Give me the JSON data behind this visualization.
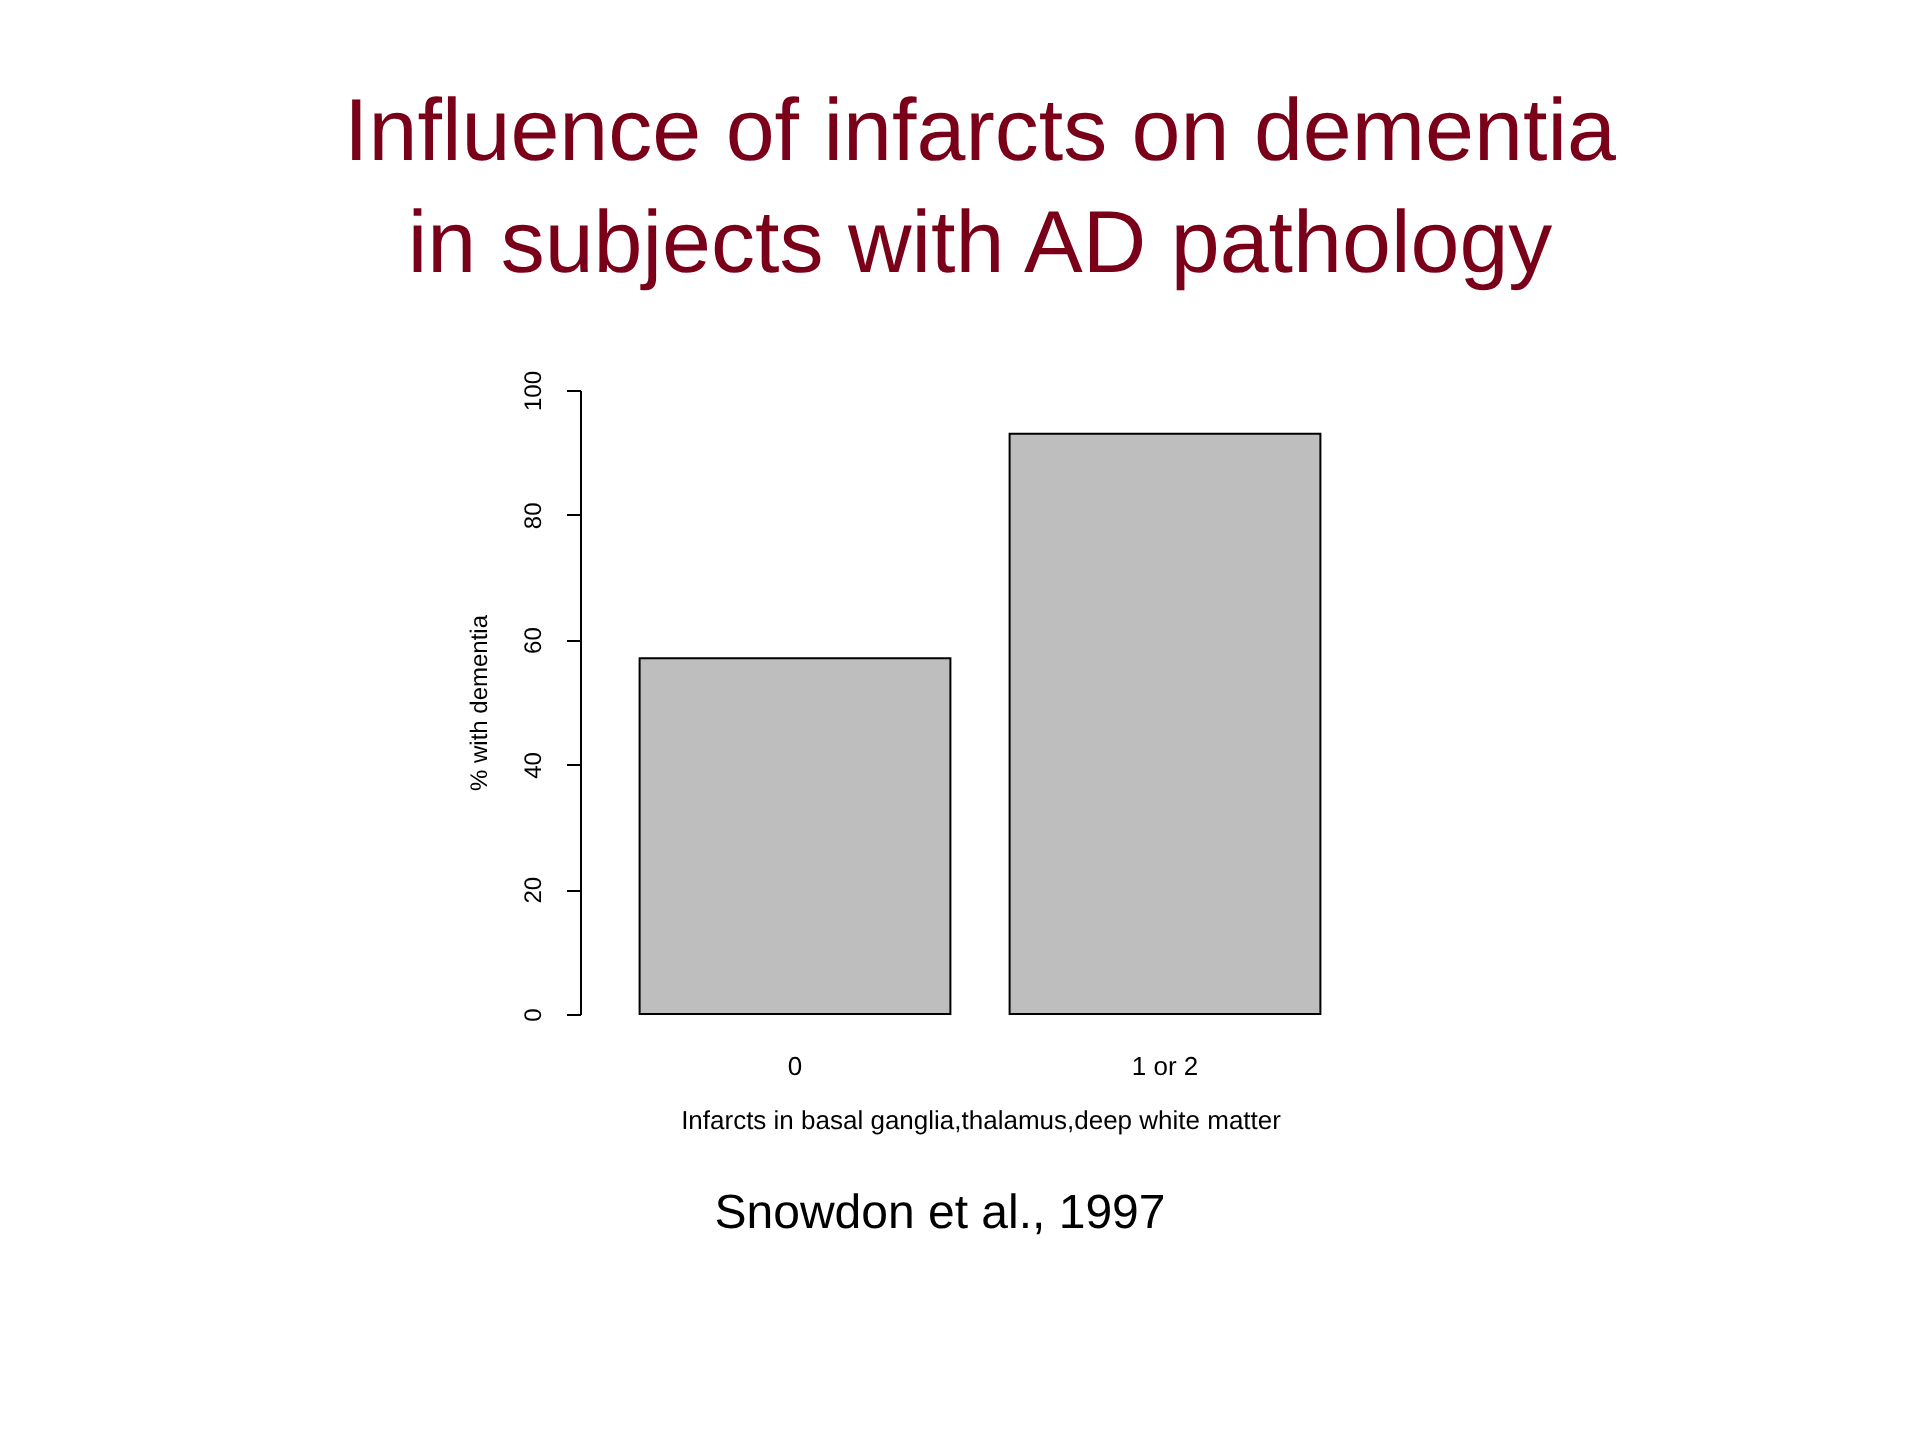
{
  "chart_data": {
    "type": "bar",
    "title": [
      "Influence of infarcts on dementia",
      "in subjects with AD pathology"
    ],
    "categories": [
      "0",
      "1 or 2"
    ],
    "values": [
      57,
      93
    ],
    "color": "#bebebe",
    "xlabel": "Infarcts in basal ganglia,thalamus,deep white matter",
    "ylabel": "% with dementia",
    "ylim": [
      0,
      100
    ],
    "yticks": [
      0,
      20,
      40,
      60,
      80,
      100
    ],
    "grid": false,
    "annotations": [
      "Snowdon et al., 1997"
    ]
  }
}
